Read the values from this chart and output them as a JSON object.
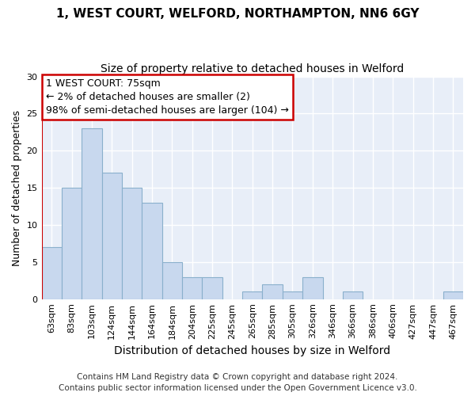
{
  "title1": "1, WEST COURT, WELFORD, NORTHAMPTON, NN6 6GY",
  "title2": "Size of property relative to detached houses in Welford",
  "xlabel": "Distribution of detached houses by size in Welford",
  "ylabel": "Number of detached properties",
  "categories": [
    "63sqm",
    "83sqm",
    "103sqm",
    "124sqm",
    "144sqm",
    "164sqm",
    "184sqm",
    "204sqm",
    "225sqm",
    "245sqm",
    "265sqm",
    "285sqm",
    "305sqm",
    "326sqm",
    "346sqm",
    "366sqm",
    "386sqm",
    "406sqm",
    "427sqm",
    "447sqm",
    "467sqm"
  ],
  "values": [
    7,
    15,
    23,
    17,
    15,
    13,
    5,
    3,
    3,
    0,
    1,
    2,
    1,
    3,
    0,
    1,
    0,
    0,
    0,
    0,
    1
  ],
  "bar_color": "#c8d8ee",
  "bar_edge_color": "#8ab0cc",
  "annotation_text_line1": "1 WEST COURT: 75sqm",
  "annotation_text_line2": "← 2% of detached houses are smaller (2)",
  "annotation_text_line3": "98% of semi-detached houses are larger (104) →",
  "annotation_box_color": "#ffffff",
  "annotation_box_edge_color": "#cc0000",
  "vertical_line_color": "#cc0000",
  "vertical_line_x": 0,
  "plot_bg_color": "#e8eef8",
  "fig_bg_color": "#ffffff",
  "grid_color": "#ffffff",
  "ylim": [
    0,
    30
  ],
  "yticks": [
    0,
    5,
    10,
    15,
    20,
    25,
    30
  ],
  "footer1": "Contains HM Land Registry data © Crown copyright and database right 2024.",
  "footer2": "Contains public sector information licensed under the Open Government Licence v3.0.",
  "title1_fontsize": 11,
  "title2_fontsize": 10,
  "xlabel_fontsize": 10,
  "ylabel_fontsize": 9,
  "tick_fontsize": 8,
  "annotation_fontsize": 9,
  "footer_fontsize": 7.5
}
